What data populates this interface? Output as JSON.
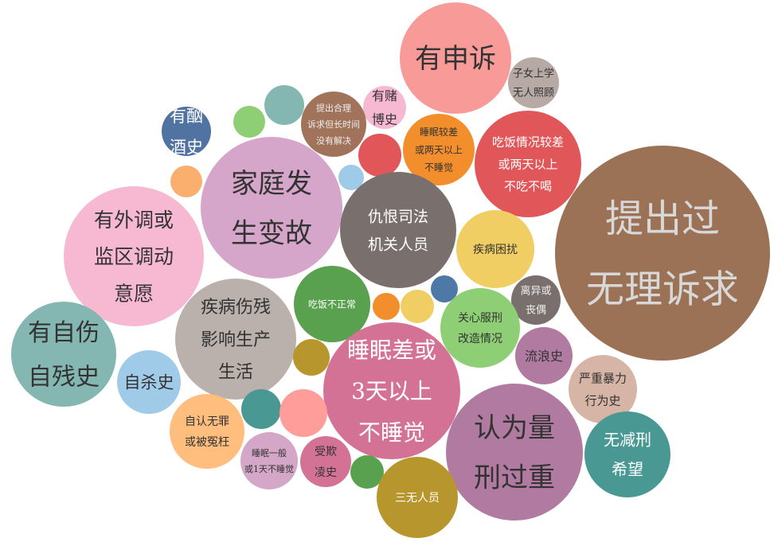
{
  "chart_data": {
    "type": "packed-bubble",
    "bubbles": [
      {
        "label": "提出过\n无理诉求",
        "color": "#9C7257",
        "text_color": "#D8D8D8",
        "size": 100
      },
      {
        "label": "有申诉",
        "color": "#F79A98",
        "text_color": "#333333",
        "size": 28
      },
      {
        "label": "子女上学\n无人照顾",
        "color": "#B7AAA5",
        "text_color": "#333333",
        "size": 6
      },
      {
        "label": "有赌\n博史",
        "color": "#F7B8D1",
        "text_color": "#333333",
        "size": 6
      },
      {
        "label": "提出合理\n诉求但长时间\n没有解决",
        "color": "#A0735A",
        "text_color": "#eeeeee",
        "size": 9
      },
      {
        "label": "",
        "color": "#85B7B2",
        "text_color": "#333333",
        "size": 4
      },
      {
        "label": "有酗\n酒史",
        "color": "#5073A1",
        "text_color": "#ffffff",
        "size": 11
      },
      {
        "label": "",
        "color": "#8ECF75",
        "text_color": "#333333",
        "size": 2
      },
      {
        "label": "睡眠较差\n或两天以上\n不睡觉",
        "color": "#F28E2B",
        "text_color": "#333333",
        "size": 11
      },
      {
        "label": "吃饭情况较差\n或两天以上\n不吃不喝",
        "color": "#E15759",
        "text_color": "#ffffff",
        "size": 25
      },
      {
        "label": "",
        "color": "#E15759",
        "text_color": "#333333",
        "size": 5
      },
      {
        "label": "家庭发\n生变故",
        "color": "#D5A6C9",
        "text_color": "#333333",
        "size": 43
      },
      {
        "label": "",
        "color": "#FBAF6E",
        "text_color": "#333333",
        "size": 2
      },
      {
        "label": "",
        "color": "#A0CBE8",
        "text_color": "#333333",
        "size": 2
      },
      {
        "label": "仇恨司法\n机关人员",
        "color": "#79706E",
        "text_color": "#ffffff",
        "size": 19
      },
      {
        "label": "有外调或\n监区调动\n意愿",
        "color": "#F7B8D1",
        "text_color": "#333333",
        "size": 38
      },
      {
        "label": "疾病困扰",
        "color": "#F1CE63",
        "text_color": "#333333",
        "size": 12
      },
      {
        "label": "",
        "color": "#4E79A7",
        "text_color": "#333333",
        "size": 1
      },
      {
        "label": "离异或\n丧偶",
        "color": "#79706E",
        "text_color": "#eeeeee",
        "size": 5
      },
      {
        "label": "疾病伤残\n影响生产\n生活",
        "color": "#BAB0AC",
        "text_color": "#333333",
        "size": 30
      },
      {
        "label": "吃饭不正常",
        "color": "#59A14F",
        "text_color": "#ffffff",
        "size": 10
      },
      {
        "label": "",
        "color": "#F28E2B",
        "text_color": "#333333",
        "size": 1
      },
      {
        "label": "",
        "color": "#F1CE63",
        "text_color": "#333333",
        "size": 2
      },
      {
        "label": "关心服刑\n改造情况",
        "color": "#8ECF75",
        "text_color": "#333333",
        "size": 9
      },
      {
        "label": "有自伤\n自残史",
        "color": "#85B7B2",
        "text_color": "#333333",
        "size": 23
      },
      {
        "label": "流浪史",
        "color": "#B07AA1",
        "text_color": "#333333",
        "size": 6
      },
      {
        "label": "",
        "color": "#B8962E",
        "text_color": "#333333",
        "size": 2
      },
      {
        "label": "睡眠差或\n3天以上\n不睡觉",
        "color": "#D37295",
        "text_color": "#ffffff",
        "size": 40
      },
      {
        "label": "自杀史",
        "color": "#A0CBE8",
        "text_color": "#333333",
        "size": 11
      },
      {
        "label": "严重暴力\n行为史",
        "color": "#D7B5A6",
        "text_color": "#333333",
        "size": 7
      },
      {
        "label": "",
        "color": "#499894",
        "text_color": "#333333",
        "size": 2
      },
      {
        "label": "",
        "color": "#FF9D9A",
        "text_color": "#333333",
        "size": 3
      },
      {
        "label": "自认无罪\n或被冤枉",
        "color": "#FFBE7D",
        "text_color": "#333333",
        "size": 9
      },
      {
        "label": "认为量\n刑过重",
        "color": "#B07AA1",
        "text_color": "#333333",
        "size": 43
      },
      {
        "label": "无减刑\n希望",
        "color": "#499894",
        "text_color": "#ffffff",
        "size": 12
      },
      {
        "label": "睡眠一般\n或1天不睡觉",
        "color": "#D4A6C8",
        "text_color": "#333333",
        "size": 6
      },
      {
        "label": "受欺\n凌史",
        "color": "#D37295",
        "text_color": "#333333",
        "size": 5
      },
      {
        "label": "",
        "color": "#59A14F",
        "text_color": "#333333",
        "size": 2
      },
      {
        "label": "三无人员",
        "color": "#B8962E",
        "text_color": "#ffffff",
        "size": 10
      }
    ]
  }
}
